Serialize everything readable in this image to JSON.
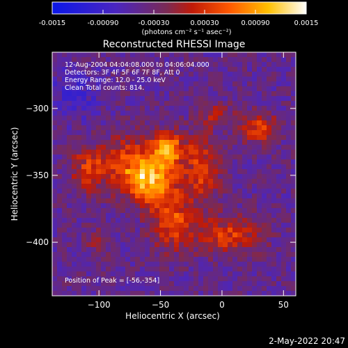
{
  "colorbar": {
    "tick_labels": [
      "-0.0015",
      "-0.00090",
      "-0.00030",
      "0.00030",
      "0.00090",
      "0.0015"
    ],
    "tick_values": [
      -0.0015,
      -0.0009,
      -0.0003,
      0.0003,
      0.0009,
      0.0015
    ],
    "range": [
      -0.0015,
      0.0015
    ],
    "unit_label": "(photons cm⁻² s⁻¹ asec⁻²)",
    "colors": [
      "#0b17e8",
      "#5a2aa8",
      "#8a2a2a",
      "#d81e00",
      "#ff7a00",
      "#ffd900",
      "#ffffff"
    ]
  },
  "image": {
    "title": "Reconstructed RHESSI Image",
    "info_lines": [
      "12-Aug-2004 04:04:08.000 to 04:06:04.000",
      "Detectors: 3F 4F 5F 6F 7F 8F, Att 0",
      "Energy Range: 12.0 - 25.0 keV",
      "Clean     Total counts: 814."
    ],
    "peak_label": "Position of Peak = [-56,-354]",
    "footer_date": "2-May-2022 20:47"
  },
  "chart_data": {
    "type": "heatmap",
    "title": "Reconstructed RHESSI Image",
    "xlabel": "Heliocentric X (arcsec)",
    "ylabel": "Heliocentric Y (arcsec)",
    "xlim": [
      -138,
      60
    ],
    "ylim": [
      -440,
      -258
    ],
    "x_ticks": [
      -100,
      -50,
      0,
      50
    ],
    "x_tick_labels": [
      "−100",
      "−50",
      "0",
      "50"
    ],
    "y_ticks": [
      -300,
      -350,
      -400
    ],
    "y_tick_labels": [
      "−300",
      "−350",
      "−400"
    ],
    "value_range": [
      -0.0015,
      0.0015
    ],
    "peak_position": [
      -56,
      -354
    ],
    "sources": [
      {
        "x": -56,
        "y": -354,
        "sx": 14,
        "sy": 12,
        "amp": 0.0015
      },
      {
        "x": -45,
        "y": -330,
        "sx": 11,
        "sy": 9,
        "amp": 0.0012
      },
      {
        "x": -78,
        "y": -340,
        "sx": 12,
        "sy": 14,
        "amp": 0.0008
      },
      {
        "x": -40,
        "y": -385,
        "sx": 12,
        "sy": 14,
        "amp": 0.0009
      },
      {
        "x": -108,
        "y": -345,
        "sx": 10,
        "sy": 12,
        "amp": 0.0008
      },
      {
        "x": -15,
        "y": -345,
        "sx": 10,
        "sy": 16,
        "amp": 0.0008
      },
      {
        "x": 5,
        "y": -395,
        "sx": 18,
        "sy": 10,
        "amp": 0.0008
      },
      {
        "x": 30,
        "y": -315,
        "sx": 10,
        "sy": 8,
        "amp": 0.0008
      },
      {
        "x": -5,
        "y": -305,
        "sx": 10,
        "sy": 6,
        "amp": 0.0005
      },
      {
        "x": -100,
        "y": -400,
        "sx": 8,
        "sy": 8,
        "amp": 0.0003
      }
    ]
  }
}
